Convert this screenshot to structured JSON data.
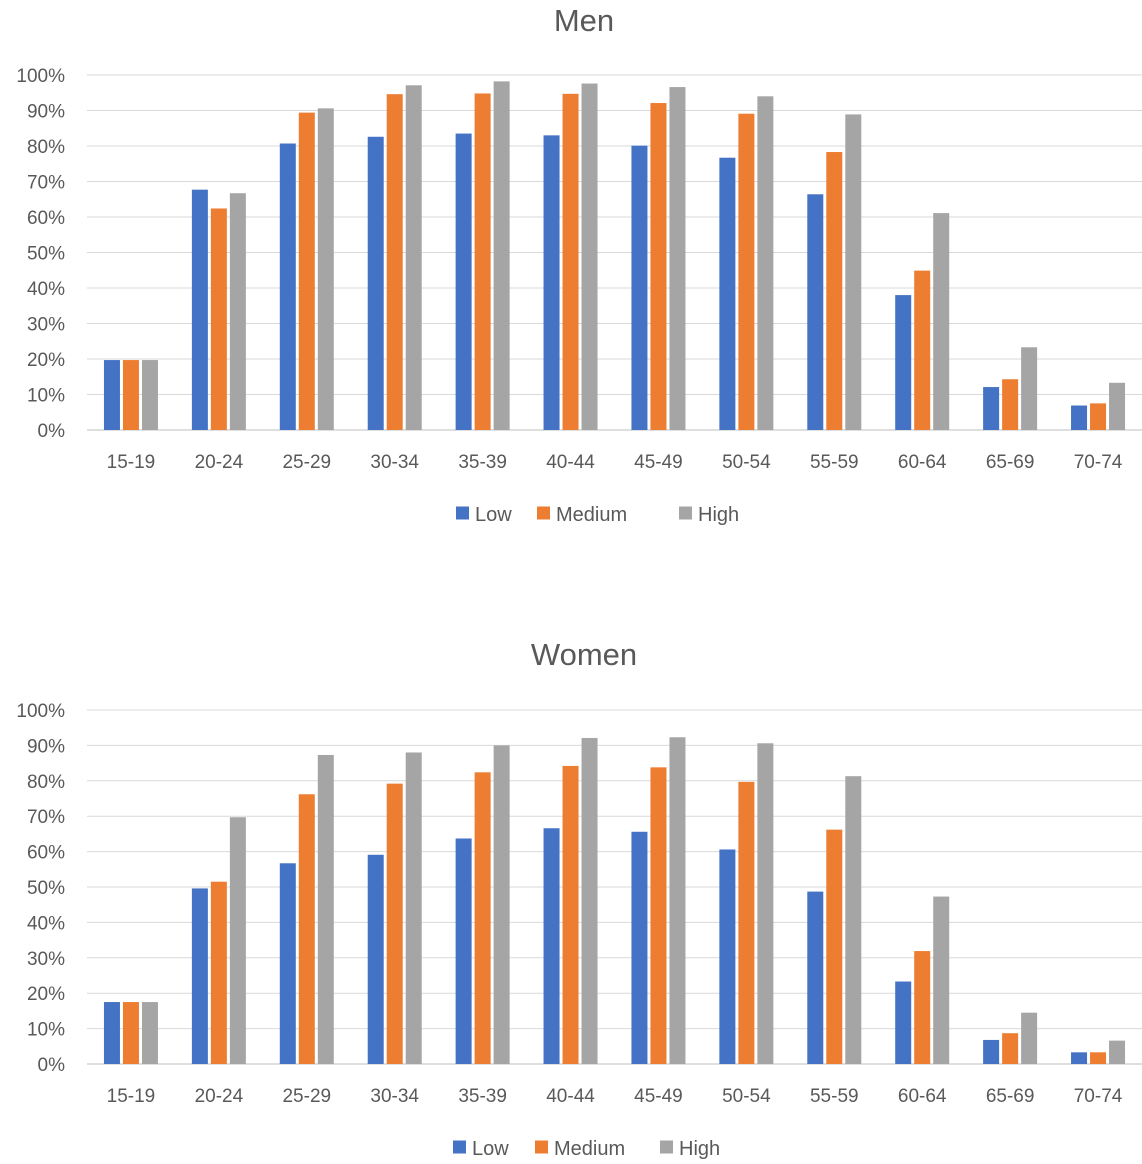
{
  "chart_data": [
    {
      "type": "bar",
      "title": "Men",
      "xlabel": "",
      "ylabel": "",
      "ylim": [
        0,
        1
      ],
      "y_ticks": [
        "0%",
        "10%",
        "20%",
        "30%",
        "40%",
        "50%",
        "60%",
        "70%",
        "80%",
        "90%",
        "100%"
      ],
      "grid": true,
      "legend_position": "bottom",
      "categories": [
        "15-19",
        "20-24",
        "25-29",
        "30-34",
        "35-39",
        "40-44",
        "45-49",
        "50-54",
        "55-59",
        "60-64",
        "65-69",
        "70-74"
      ],
      "series": [
        {
          "name": "Low",
          "color": "#4472C4",
          "values": [
            0.197,
            0.677,
            0.807,
            0.826,
            0.835,
            0.83,
            0.801,
            0.767,
            0.664,
            0.38,
            0.121,
            0.069
          ]
        },
        {
          "name": "Medium",
          "color": "#ED7D31",
          "values": [
            0.197,
            0.624,
            0.894,
            0.946,
            0.948,
            0.947,
            0.921,
            0.891,
            0.783,
            0.449,
            0.143,
            0.075
          ]
        },
        {
          "name": "High",
          "color": "#A5A5A5",
          "values": [
            0.197,
            0.667,
            0.906,
            0.971,
            0.982,
            0.976,
            0.966,
            0.94,
            0.889,
            0.611,
            0.233,
            0.133
          ]
        }
      ]
    },
    {
      "type": "bar",
      "title": "Women",
      "xlabel": "",
      "ylabel": "",
      "ylim": [
        0,
        1
      ],
      "y_ticks": [
        "0%",
        "10%",
        "20%",
        "30%",
        "40%",
        "50%",
        "60%",
        "70%",
        "80%",
        "90%",
        "100%"
      ],
      "grid": true,
      "legend_position": "bottom",
      "categories": [
        "15-19",
        "20-24",
        "25-29",
        "30-34",
        "35-39",
        "40-44",
        "45-49",
        "50-54",
        "55-59",
        "60-64",
        "65-69",
        "70-74"
      ],
      "series": [
        {
          "name": "Low",
          "color": "#4472C4",
          "values": [
            0.175,
            0.496,
            0.567,
            0.591,
            0.637,
            0.666,
            0.656,
            0.606,
            0.487,
            0.233,
            0.068,
            0.033
          ]
        },
        {
          "name": "Medium",
          "color": "#ED7D31",
          "values": [
            0.175,
            0.515,
            0.762,
            0.792,
            0.824,
            0.842,
            0.838,
            0.797,
            0.662,
            0.319,
            0.087,
            0.033
          ]
        },
        {
          "name": "High",
          "color": "#A5A5A5",
          "values": [
            0.175,
            0.697,
            0.873,
            0.88,
            0.9,
            0.921,
            0.923,
            0.906,
            0.813,
            0.473,
            0.145,
            0.066
          ]
        }
      ]
    }
  ]
}
